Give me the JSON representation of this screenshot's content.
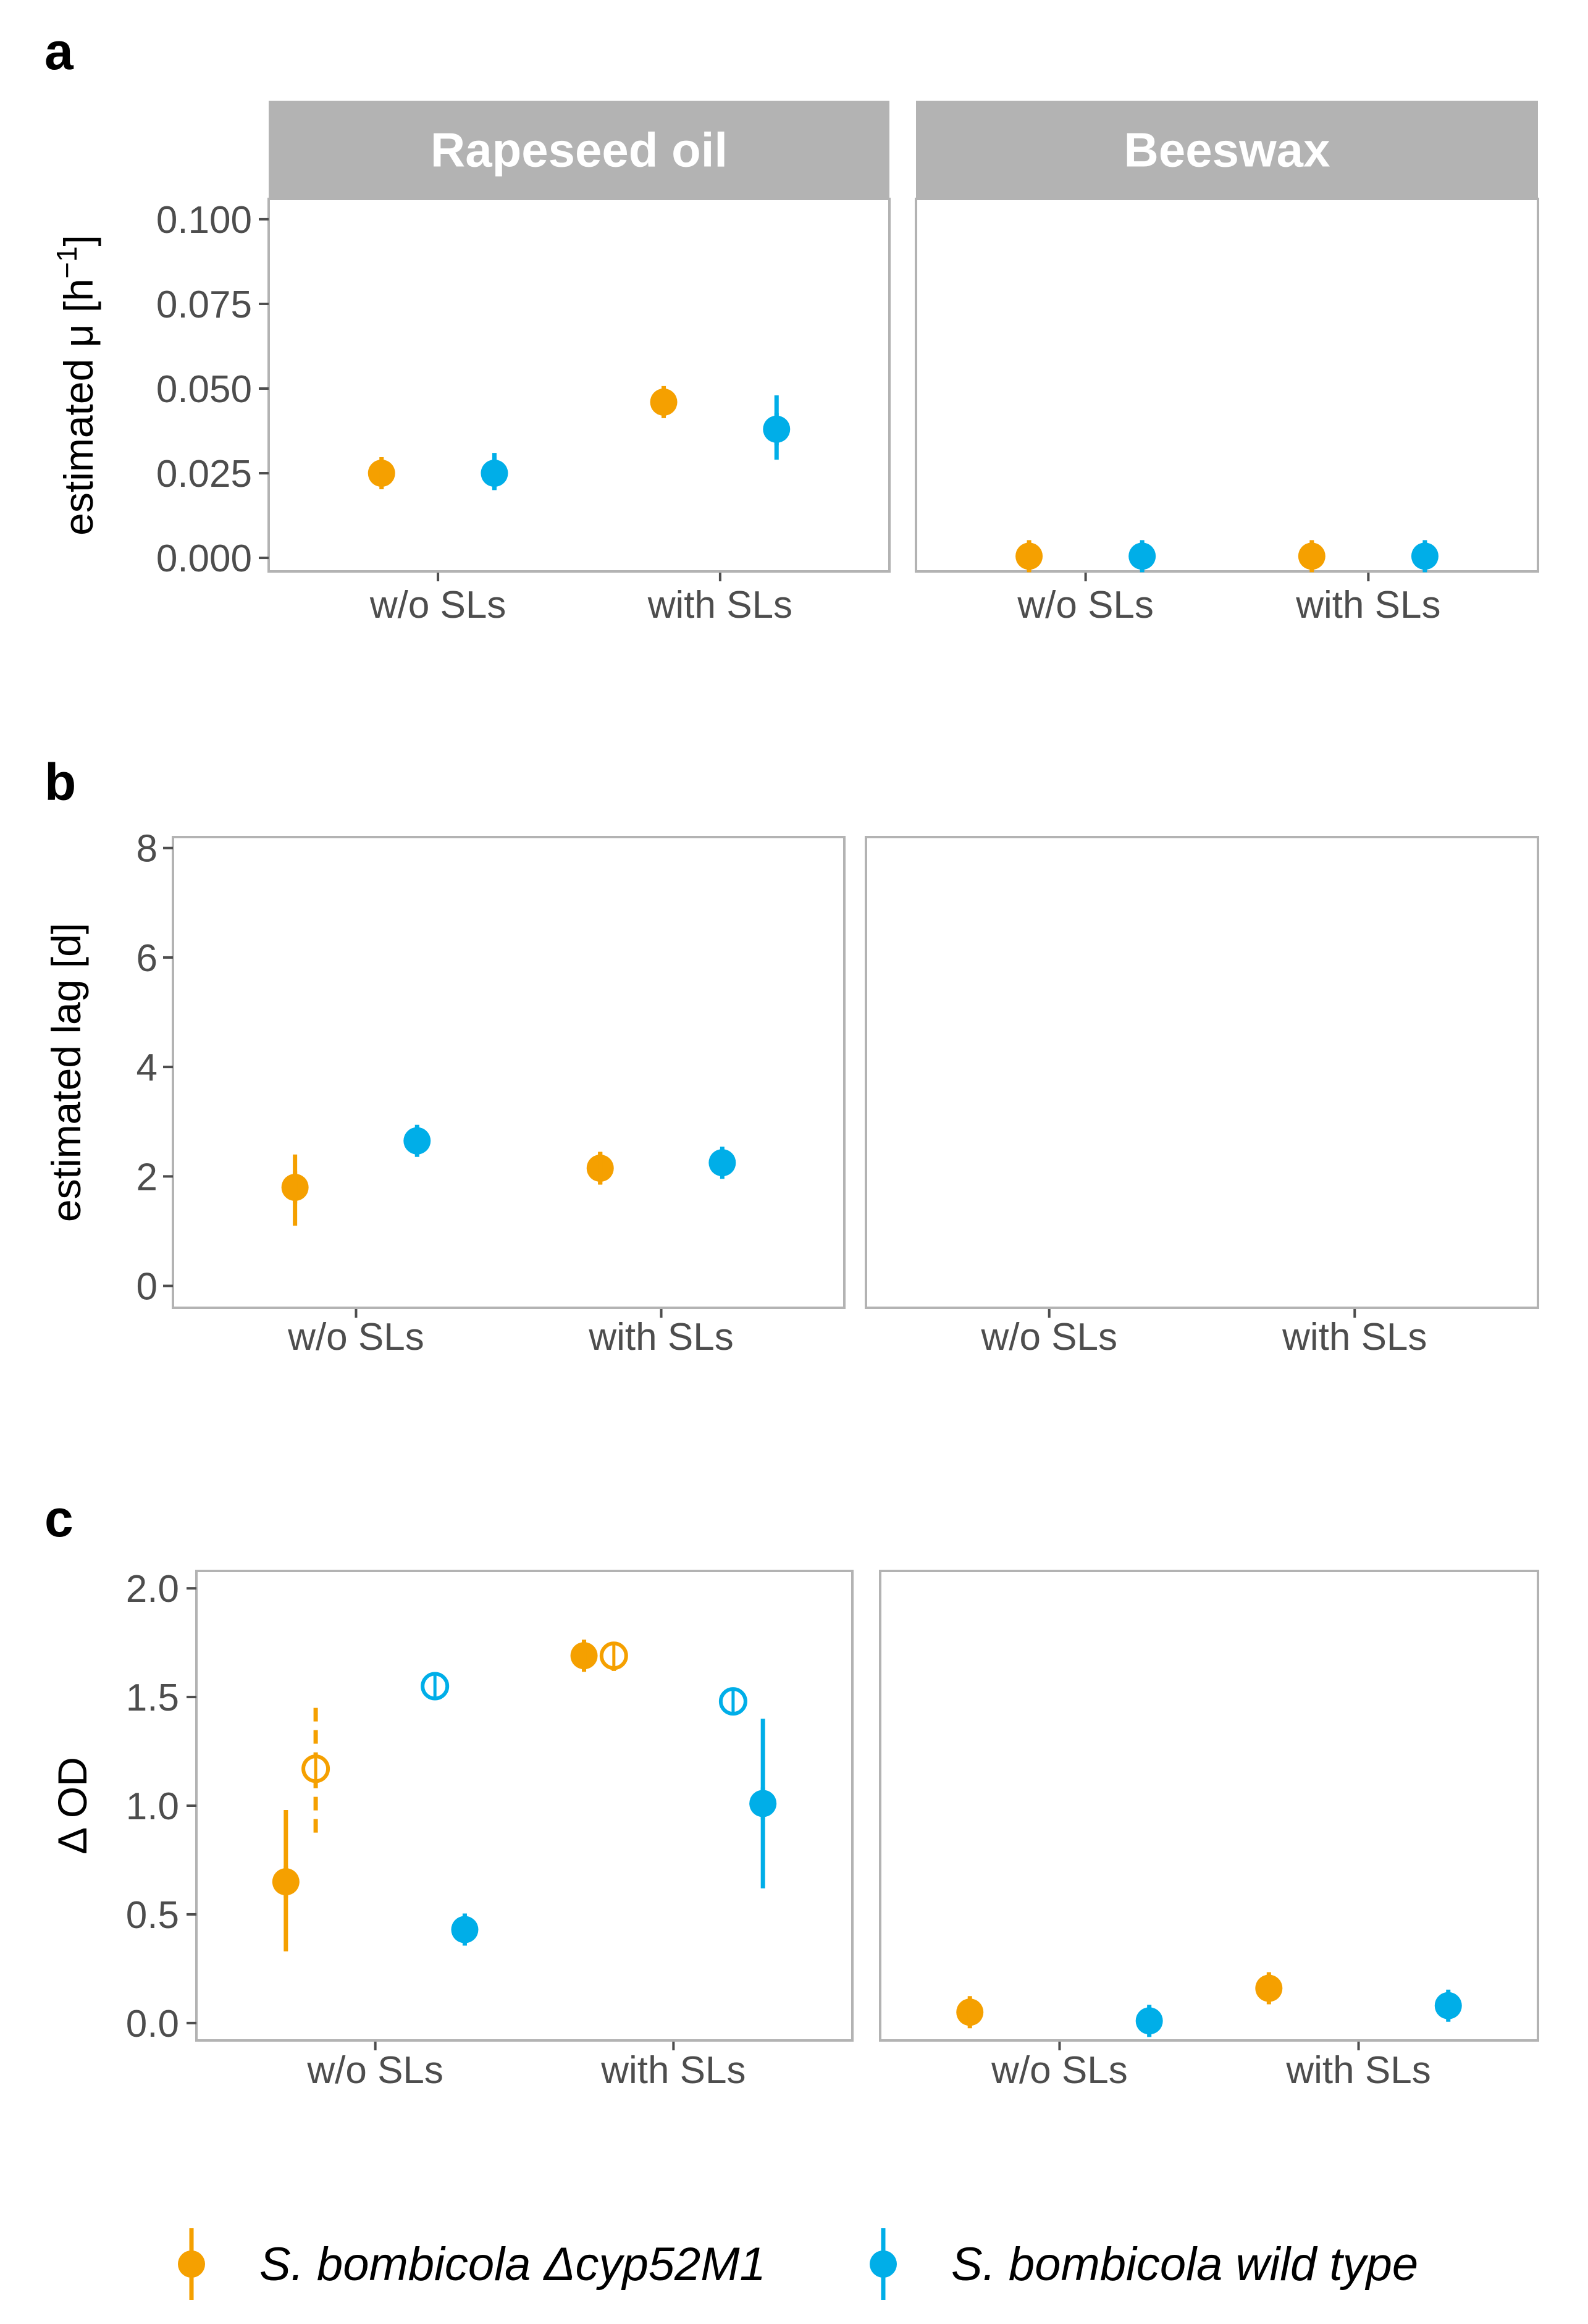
{
  "colors": {
    "mutant": "#F5A000",
    "wildtype": "#00AEE8"
  },
  "strips": [
    "Rapeseed oil",
    "Beeswax"
  ],
  "legend": [
    {
      "label": "S.  bombicola Δcyp52M1",
      "color": "#F5A000"
    },
    {
      "label": "S.  bombicola wild type",
      "color": "#00AEE8"
    }
  ],
  "chart_data": [
    {
      "id": "a",
      "letter": "a",
      "type": "scatter",
      "ylabel_base": "estimated μ [h",
      "ylabel_sup": "−1",
      "ylabel_close": "]",
      "ylim": [
        -0.004,
        0.106
      ],
      "yticks": [
        0.0,
        0.025,
        0.05,
        0.075,
        0.1
      ],
      "ytick_labels": [
        "0.000",
        "0.025",
        "0.050",
        "0.075",
        "0.100"
      ],
      "minor_ticks": [
        0.0125,
        0.0375,
        0.0625,
        0.0875
      ],
      "categories": [
        "w/o SLs",
        "with SLs"
      ],
      "facets": [
        "Rapeseed oil",
        "Beeswax"
      ],
      "points": [
        {
          "facet": 0,
          "cat": 0,
          "dodge": -0.2,
          "series": "mutant",
          "y": 0.025,
          "lo": 0.023,
          "hi": 0.027,
          "hollow": false,
          "dashed": false
        },
        {
          "facet": 0,
          "cat": 0,
          "dodge": 0.2,
          "series": "wildtype",
          "y": 0.025,
          "lo": 0.02,
          "hi": 0.031,
          "hollow": false,
          "dashed": false
        },
        {
          "facet": 0,
          "cat": 1,
          "dodge": -0.2,
          "series": "mutant",
          "y": 0.046,
          "lo": 0.042,
          "hi": 0.05,
          "hollow": false,
          "dashed": false
        },
        {
          "facet": 0,
          "cat": 1,
          "dodge": 0.2,
          "series": "wildtype",
          "y": 0.038,
          "lo": 0.029,
          "hi": 0.048,
          "hollow": false,
          "dashed": false
        },
        {
          "facet": 1,
          "cat": 0,
          "dodge": -0.2,
          "series": "mutant",
          "y": 0.0005,
          "lo": 0.0005,
          "hi": 0.0005,
          "hollow": false,
          "dashed": false
        },
        {
          "facet": 1,
          "cat": 0,
          "dodge": 0.2,
          "series": "wildtype",
          "y": 0.0005,
          "lo": 0.0005,
          "hi": 0.0005,
          "hollow": false,
          "dashed": false
        },
        {
          "facet": 1,
          "cat": 1,
          "dodge": -0.2,
          "series": "mutant",
          "y": 0.0005,
          "lo": 0.0005,
          "hi": 0.0005,
          "hollow": false,
          "dashed": false
        },
        {
          "facet": 1,
          "cat": 1,
          "dodge": 0.2,
          "series": "wildtype",
          "y": 0.0005,
          "lo": 0.0005,
          "hi": 0.0005,
          "hollow": false,
          "dashed": false
        }
      ]
    },
    {
      "id": "b",
      "letter": "b",
      "type": "scatter",
      "ylabel_base": "estimated lag [d]",
      "ylim": [
        -0.4,
        8.2
      ],
      "yticks": [
        0,
        2,
        4,
        6,
        8
      ],
      "ytick_labels": [
        "0",
        "2",
        "4",
        "6",
        "8"
      ],
      "minor_ticks": [
        1,
        3,
        5,
        7
      ],
      "categories": [
        "w/o SLs",
        "with SLs"
      ],
      "facets": [
        "Rapeseed oil",
        "Beeswax"
      ],
      "points": [
        {
          "facet": 0,
          "cat": 0,
          "dodge": -0.2,
          "series": "mutant",
          "y": 1.8,
          "lo": 1.1,
          "hi": 2.4,
          "hollow": false,
          "dashed": false
        },
        {
          "facet": 0,
          "cat": 0,
          "dodge": 0.2,
          "series": "wildtype",
          "y": 2.65,
          "lo": 2.55,
          "hi": 2.75,
          "hollow": false,
          "dashed": false
        },
        {
          "facet": 0,
          "cat": 1,
          "dodge": -0.2,
          "series": "mutant",
          "y": 2.15,
          "lo": 1.85,
          "hi": 2.45,
          "hollow": false,
          "dashed": false
        },
        {
          "facet": 0,
          "cat": 1,
          "dodge": 0.2,
          "series": "wildtype",
          "y": 2.25,
          "lo": 2.15,
          "hi": 2.35,
          "hollow": false,
          "dashed": false
        }
      ]
    },
    {
      "id": "c",
      "letter": "c",
      "type": "scatter",
      "ylabel_base": "Δ OD",
      "ylim": [
        -0.08,
        2.08
      ],
      "yticks": [
        0.0,
        0.5,
        1.0,
        1.5,
        2.0
      ],
      "ytick_labels": [
        "0.0",
        "0.5",
        "1.0",
        "1.5",
        "2.0"
      ],
      "minor_ticks": [
        0.25,
        0.75,
        1.25,
        1.75
      ],
      "categories": [
        "w/o SLs",
        "with SLs"
      ],
      "facets": [
        "Rapeseed oil",
        "Beeswax"
      ],
      "points": [
        {
          "facet": 0,
          "cat": 0,
          "dodge": -0.3,
          "series": "mutant",
          "y": 0.65,
          "lo": 0.33,
          "hi": 0.98,
          "hollow": false,
          "dashed": false
        },
        {
          "facet": 0,
          "cat": 0,
          "dodge": -0.2,
          "series": "mutant",
          "y": 1.17,
          "lo": 0.86,
          "hi": 1.45,
          "hollow": true,
          "dashed": true
        },
        {
          "facet": 0,
          "cat": 0,
          "dodge": 0.2,
          "series": "wildtype",
          "y": 1.55,
          "lo": 1.52,
          "hi": 1.58,
          "hollow": true,
          "dashed": false
        },
        {
          "facet": 0,
          "cat": 0,
          "dodge": 0.3,
          "series": "wildtype",
          "y": 0.43,
          "lo": 0.37,
          "hi": 0.49,
          "hollow": false,
          "dashed": false
        },
        {
          "facet": 0,
          "cat": 1,
          "dodge": -0.3,
          "series": "mutant",
          "y": 1.69,
          "lo": 1.63,
          "hi": 1.75,
          "hollow": false,
          "dashed": false
        },
        {
          "facet": 0,
          "cat": 1,
          "dodge": -0.2,
          "series": "mutant",
          "y": 1.69,
          "lo": 1.62,
          "hi": 1.75,
          "hollow": true,
          "dashed": false
        },
        {
          "facet": 0,
          "cat": 1,
          "dodge": 0.2,
          "series": "wildtype",
          "y": 1.48,
          "lo": 1.45,
          "hi": 1.51,
          "hollow": true,
          "dashed": false
        },
        {
          "facet": 0,
          "cat": 1,
          "dodge": 0.3,
          "series": "wildtype",
          "y": 1.01,
          "lo": 0.62,
          "hi": 1.4,
          "hollow": false,
          "dashed": false
        },
        {
          "facet": 1,
          "cat": 0,
          "dodge": -0.3,
          "series": "mutant",
          "y": 0.05,
          "lo": 0.03,
          "hi": 0.07,
          "hollow": false,
          "dashed": false
        },
        {
          "facet": 1,
          "cat": 0,
          "dodge": 0.3,
          "series": "wildtype",
          "y": 0.01,
          "lo": 0.0,
          "hi": 0.02,
          "hollow": false,
          "dashed": false
        },
        {
          "facet": 1,
          "cat": 1,
          "dodge": -0.3,
          "series": "mutant",
          "y": 0.16,
          "lo": 0.14,
          "hi": 0.18,
          "hollow": false,
          "dashed": false
        },
        {
          "facet": 1,
          "cat": 1,
          "dodge": 0.3,
          "series": "wildtype",
          "y": 0.08,
          "lo": 0.06,
          "hi": 0.1,
          "hollow": false,
          "dashed": false
        }
      ]
    }
  ]
}
